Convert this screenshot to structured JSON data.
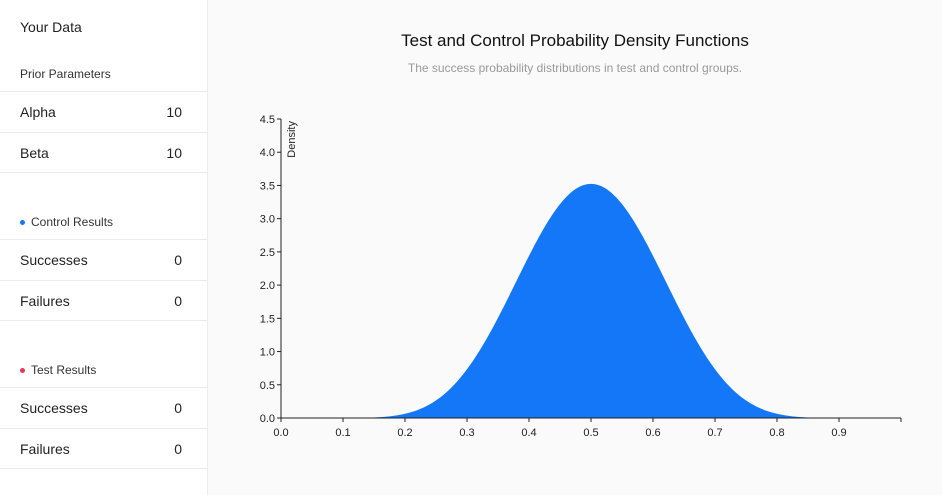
{
  "sidebar": {
    "title": "Your Data",
    "prior": {
      "heading": "Prior Parameters",
      "rows": [
        {
          "label": "Alpha",
          "value": "10"
        },
        {
          "label": "Beta",
          "value": "10"
        }
      ]
    },
    "control": {
      "heading": "Control Results",
      "color": "#1477f8",
      "rows": [
        {
          "label": "Successes",
          "value": "0"
        },
        {
          "label": "Failures",
          "value": "0"
        }
      ]
    },
    "test": {
      "heading": "Test Results",
      "color": "#e8375a",
      "rows": [
        {
          "label": "Successes",
          "value": "0"
        },
        {
          "label": "Failures",
          "value": "0"
        }
      ]
    }
  },
  "chart_data": {
    "type": "area",
    "title": "Test and Control Probability Density Functions",
    "subtitle": "The success probability distributions in test and control groups.",
    "xlabel": "",
    "ylabel": "Density",
    "xlim": [
      0,
      1
    ],
    "ylim": [
      0,
      4.5
    ],
    "x_ticks": [
      "0.0",
      "0.1",
      "0.2",
      "0.3",
      "0.4",
      "0.5",
      "0.6",
      "0.7",
      "0.8",
      "0.9"
    ],
    "y_ticks": [
      "0.0",
      "0.5",
      "1.0",
      "1.5",
      "2.0",
      "2.5",
      "3.0",
      "3.5",
      "4.0",
      "4.5"
    ],
    "distribution": {
      "family": "beta",
      "alpha": 10,
      "beta": 10
    },
    "x": [
      0.0,
      0.05,
      0.1,
      0.15,
      0.2,
      0.25,
      0.3,
      0.35,
      0.4,
      0.45,
      0.5,
      0.55,
      0.6,
      0.65,
      0.7,
      0.75,
      0.8,
      0.85,
      0.9,
      0.95,
      1.0
    ],
    "series": [
      {
        "name": "Control",
        "color": "#1477f8",
        "values": [
          0,
          0,
          0.0008,
          0.012,
          0.076,
          0.31,
          0.83,
          1.66,
          2.57,
          3.22,
          3.52,
          3.22,
          2.57,
          1.66,
          0.83,
          0.31,
          0.076,
          0.012,
          0.0008,
          0,
          0
        ]
      }
    ],
    "grid": false,
    "legend": "none"
  }
}
